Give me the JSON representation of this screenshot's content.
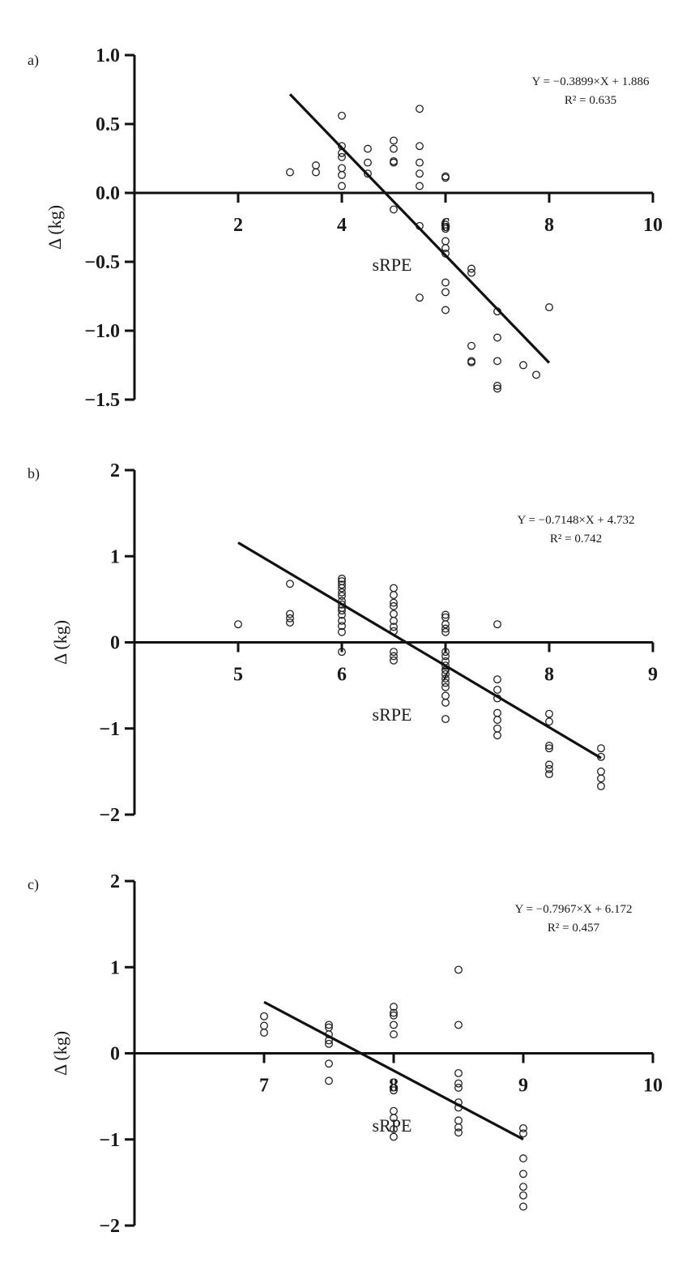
{
  "chart_data": [
    {
      "type": "scatter",
      "panel_label": "a)",
      "xlabel": "sRPE",
      "ylabel": "Δ (kg)",
      "xlim": [
        0,
        10
      ],
      "ylim": [
        -1.5,
        1.0
      ],
      "xticks": [
        2,
        4,
        6,
        8,
        10
      ],
      "yticks": [
        1.0,
        0.5,
        0.0,
        -0.5,
        -1.0,
        -1.5
      ],
      "ytick_labels": [
        "1.0",
        "0.5",
        "0.0",
        "-0.5",
        "-1.0",
        "-1.5"
      ],
      "xtick_labels": [
        "2",
        "4",
        "6",
        "8",
        "10"
      ],
      "equation": "Y = -0.3899×X + 1.886",
      "r2_label": "R² = 0.635",
      "regression": {
        "slope": -0.3899,
        "intercept": 1.886,
        "x_range": [
          3,
          8
        ]
      },
      "points": [
        [
          3,
          0.15
        ],
        [
          3.5,
          0.2
        ],
        [
          3.5,
          0.15
        ],
        [
          4,
          0.56
        ],
        [
          4,
          0.34
        ],
        [
          4,
          0.29
        ],
        [
          4,
          0.26
        ],
        [
          4,
          0.18
        ],
        [
          4,
          0.13
        ],
        [
          4,
          0.05
        ],
        [
          4.5,
          0.32
        ],
        [
          4.5,
          0.22
        ],
        [
          4.5,
          0.14
        ],
        [
          5,
          0.38
        ],
        [
          5,
          0.32
        ],
        [
          5,
          0.23
        ],
        [
          5,
          0.22
        ],
        [
          5,
          -0.12
        ],
        [
          5.5,
          0.61
        ],
        [
          5.5,
          0.34
        ],
        [
          5.5,
          0.22
        ],
        [
          5.5,
          0.14
        ],
        [
          5.5,
          0.05
        ],
        [
          5.5,
          -0.24
        ],
        [
          5.5,
          -0.76
        ],
        [
          6,
          0.12
        ],
        [
          6,
          0.11
        ],
        [
          6,
          -0.23
        ],
        [
          6,
          -0.26
        ],
        [
          6,
          -0.35
        ],
        [
          6,
          -0.4
        ],
        [
          6,
          -0.44
        ],
        [
          6,
          -0.65
        ],
        [
          6,
          -0.72
        ],
        [
          6,
          -0.85
        ],
        [
          6.5,
          -0.55
        ],
        [
          6.5,
          -0.58
        ],
        [
          6.5,
          -1.11
        ],
        [
          6.5,
          -1.22
        ],
        [
          6.5,
          -1.23
        ],
        [
          7,
          -0.86
        ],
        [
          7,
          -1.05
        ],
        [
          7,
          -1.22
        ],
        [
          7,
          -1.4
        ],
        [
          7,
          -1.42
        ],
        [
          7.5,
          -1.25
        ],
        [
          7.75,
          -1.32
        ],
        [
          8,
          -0.83
        ]
      ]
    },
    {
      "type": "scatter",
      "panel_label": "b)",
      "xlabel": "sRPE",
      "ylabel": "Δ (kg)",
      "xlim": [
        4,
        9
      ],
      "ylim": [
        -2,
        2
      ],
      "xticks": [
        5,
        6,
        7,
        8,
        9
      ],
      "yticks": [
        2,
        1,
        0,
        -1,
        -2
      ],
      "ytick_labels": [
        "2",
        "1",
        "0",
        "-1",
        "-2"
      ],
      "xtick_labels": [
        "5",
        "6",
        "7",
        "8",
        "9"
      ],
      "equation": "Y = -0.7148×X + 4.732",
      "r2_label": "R² = 0.742",
      "regression": {
        "slope": -0.7148,
        "intercept": 4.732,
        "x_range": [
          5,
          8.5
        ]
      },
      "points": [
        [
          5,
          0.21
        ],
        [
          5.5,
          0.68
        ],
        [
          5.5,
          0.33
        ],
        [
          5.5,
          0.28
        ],
        [
          5.5,
          0.23
        ],
        [
          6,
          0.74
        ],
        [
          6,
          0.71
        ],
        [
          6,
          0.67
        ],
        [
          6,
          0.63
        ],
        [
          6,
          0.58
        ],
        [
          6,
          0.54
        ],
        [
          6,
          0.48
        ],
        [
          6,
          0.44
        ],
        [
          6,
          0.4
        ],
        [
          6,
          0.37
        ],
        [
          6,
          0.32
        ],
        [
          6,
          0.25
        ],
        [
          6,
          0.19
        ],
        [
          6,
          0.12
        ],
        [
          6,
          -0.11
        ],
        [
          6.5,
          0.63
        ],
        [
          6.5,
          0.55
        ],
        [
          6.5,
          0.46
        ],
        [
          6.5,
          0.42
        ],
        [
          6.5,
          0.33
        ],
        [
          6.5,
          0.25
        ],
        [
          6.5,
          0.18
        ],
        [
          6.5,
          0.13
        ],
        [
          6.5,
          -0.11
        ],
        [
          6.5,
          -0.16
        ],
        [
          6.5,
          -0.21
        ],
        [
          7,
          0.32
        ],
        [
          7,
          0.29
        ],
        [
          7,
          0.21
        ],
        [
          7,
          0.16
        ],
        [
          7,
          0.12
        ],
        [
          7,
          -0.11
        ],
        [
          7,
          -0.16
        ],
        [
          7,
          -0.22
        ],
        [
          7,
          -0.27
        ],
        [
          7,
          -0.32
        ],
        [
          7,
          -0.37
        ],
        [
          7,
          -0.42
        ],
        [
          7,
          -0.47
        ],
        [
          7,
          -0.52
        ],
        [
          7,
          -0.62
        ],
        [
          7,
          -0.7
        ],
        [
          7,
          -0.89
        ],
        [
          7.5,
          0.21
        ],
        [
          7.5,
          -0.43
        ],
        [
          7.5,
          -0.55
        ],
        [
          7.5,
          -0.65
        ],
        [
          7.5,
          -0.82
        ],
        [
          7.5,
          -0.9
        ],
        [
          7.5,
          -1.0
        ],
        [
          7.5,
          -1.08
        ],
        [
          8,
          -0.83
        ],
        [
          8,
          -0.92
        ],
        [
          8,
          -1.2
        ],
        [
          8,
          -1.23
        ],
        [
          8,
          -1.42
        ],
        [
          8,
          -1.47
        ],
        [
          8,
          -1.53
        ],
        [
          8.5,
          -1.23
        ],
        [
          8.5,
          -1.33
        ],
        [
          8.5,
          -1.5
        ],
        [
          8.5,
          -1.58
        ],
        [
          8.5,
          -1.67
        ]
      ]
    },
    {
      "type": "scatter",
      "panel_label": "c)",
      "xlabel": "sRPE",
      "ylabel": "Δ (kg)",
      "xlim": [
        6,
        10
      ],
      "ylim": [
        -2,
        2
      ],
      "xticks": [
        7,
        8,
        9,
        10
      ],
      "yticks": [
        2,
        1,
        0,
        -1,
        -2
      ],
      "ytick_labels": [
        "2",
        "1",
        "0",
        "-1",
        "-2"
      ],
      "xtick_labels": [
        "7",
        "8",
        "9",
        "10"
      ],
      "equation": "Y = -0.7967×X + 6.172",
      "r2_label": "R² = 0.457",
      "regression": {
        "slope": -0.7967,
        "intercept": 6.172,
        "x_range": [
          7,
          9
        ]
      },
      "points": [
        [
          7,
          0.43
        ],
        [
          7,
          0.32
        ],
        [
          7,
          0.24
        ],
        [
          7.5,
          0.33
        ],
        [
          7.5,
          0.3
        ],
        [
          7.5,
          0.22
        ],
        [
          7.5,
          0.15
        ],
        [
          7.5,
          0.11
        ],
        [
          7.5,
          -0.12
        ],
        [
          7.5,
          -0.32
        ],
        [
          8,
          0.54
        ],
        [
          8,
          0.47
        ],
        [
          8,
          0.44
        ],
        [
          8,
          0.33
        ],
        [
          8,
          0.22
        ],
        [
          8,
          -0.43
        ],
        [
          8,
          -0.67
        ],
        [
          8,
          -0.75
        ],
        [
          8,
          -0.88
        ],
        [
          8,
          -0.97
        ],
        [
          8.5,
          0.97
        ],
        [
          8.5,
          0.33
        ],
        [
          8.5,
          -0.23
        ],
        [
          8.5,
          -0.35
        ],
        [
          8.5,
          -0.4
        ],
        [
          8.5,
          -0.57
        ],
        [
          8.5,
          -0.63
        ],
        [
          8.5,
          -0.78
        ],
        [
          8.5,
          -0.86
        ],
        [
          8.5,
          -0.92
        ],
        [
          9,
          -0.87
        ],
        [
          9,
          -0.93
        ],
        [
          9,
          -1.22
        ],
        [
          9,
          -1.4
        ],
        [
          9,
          -1.55
        ],
        [
          9,
          -1.65
        ],
        [
          9,
          -1.78
        ]
      ]
    }
  ]
}
